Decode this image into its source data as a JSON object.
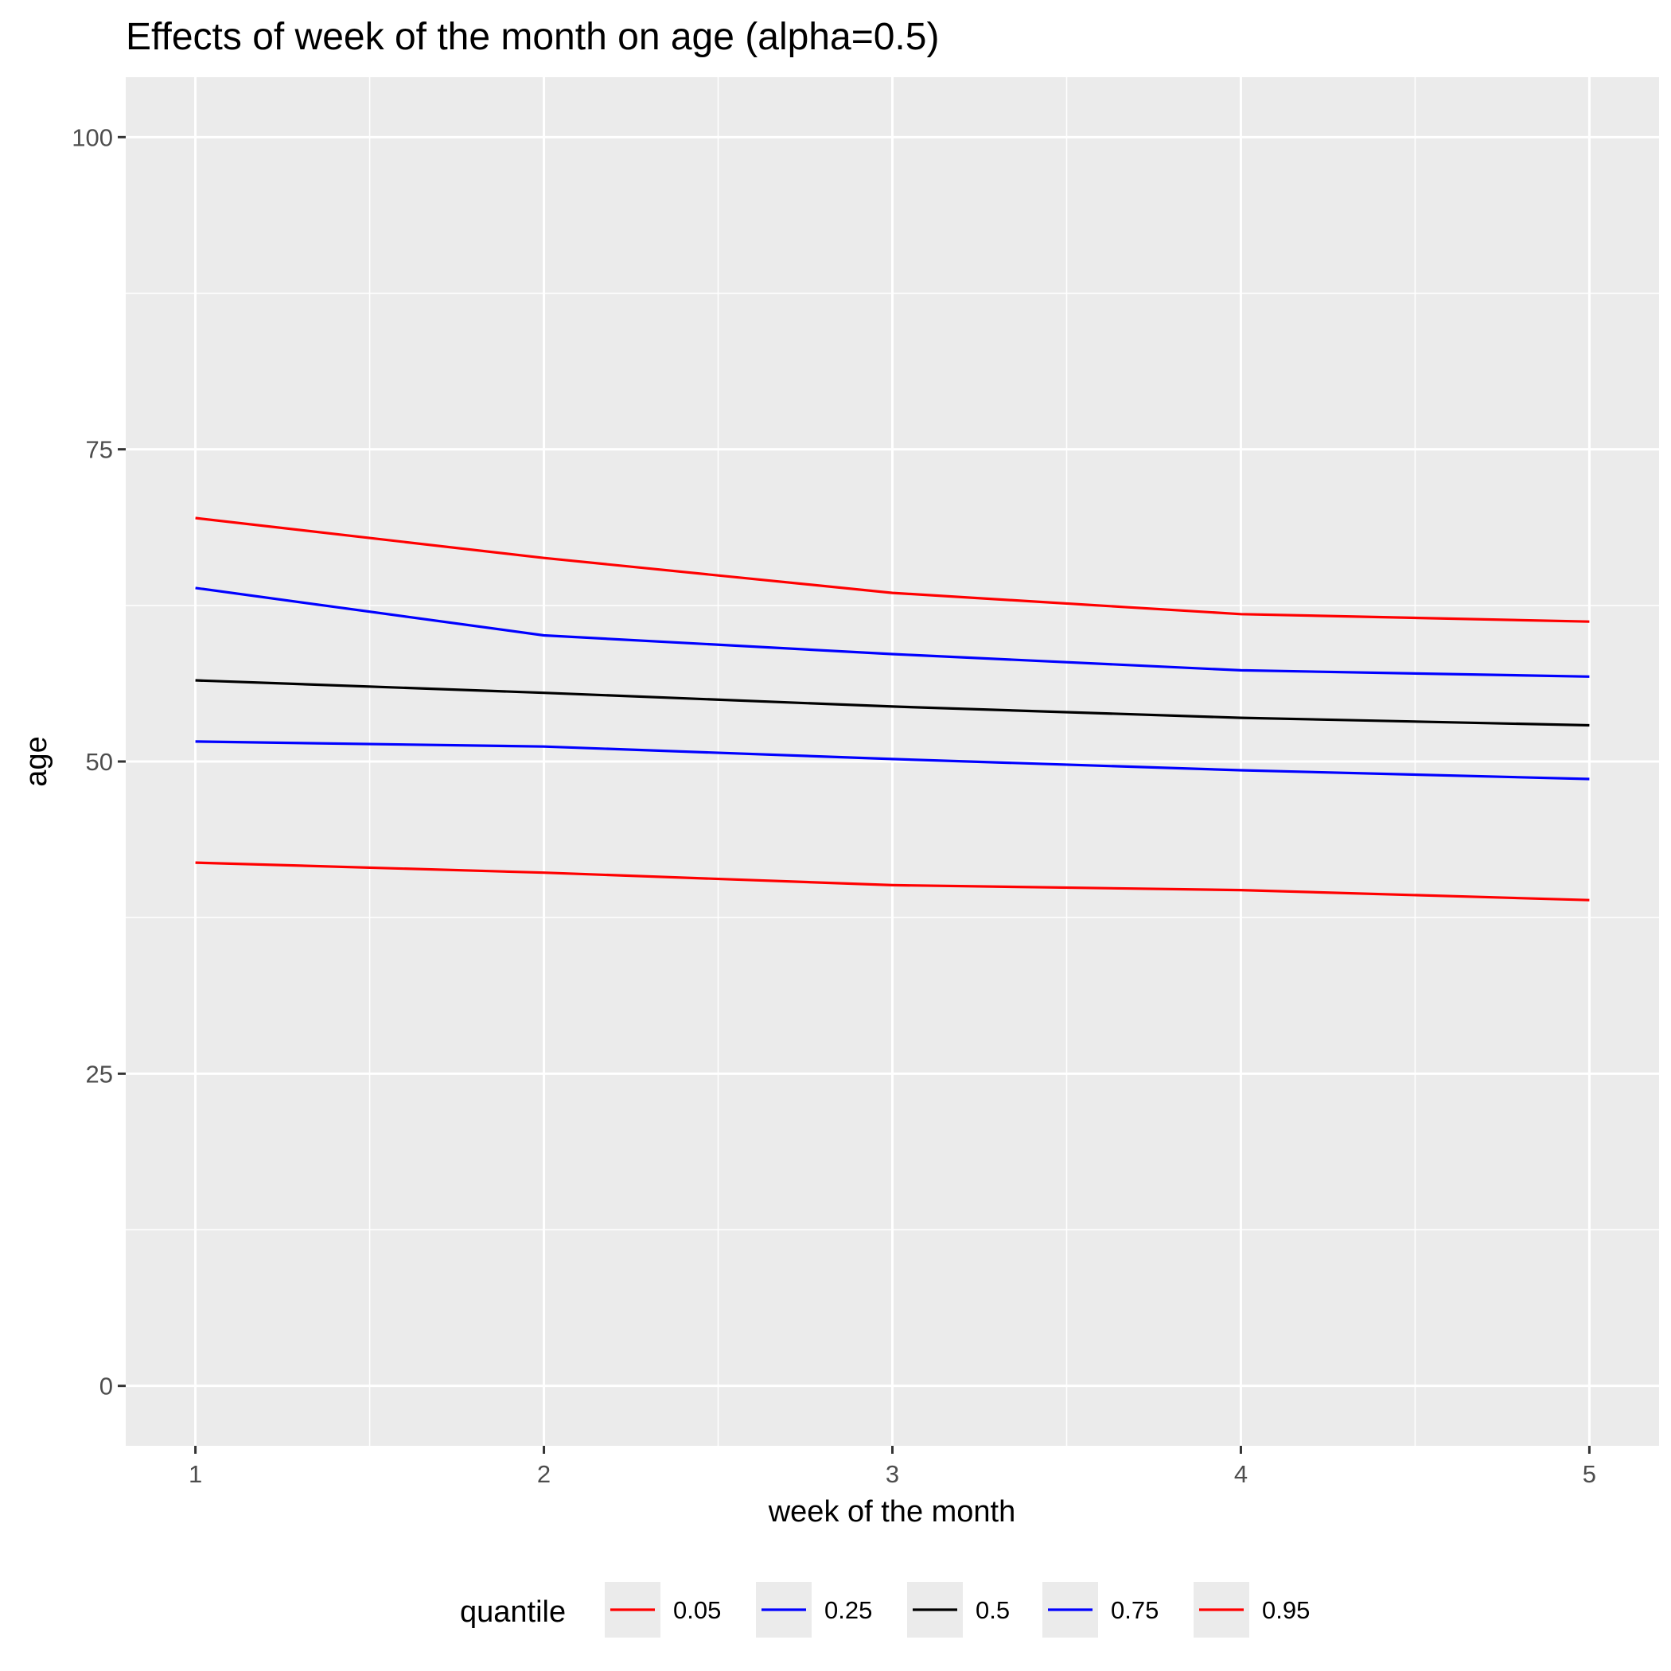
{
  "chart_data": {
    "type": "line",
    "title": "Effects of week of the month on age (alpha=0.5)",
    "xlabel": "week of the month",
    "ylabel": "age",
    "x": [
      1,
      2,
      3,
      4,
      5
    ],
    "xlim": [
      0.8,
      5.2
    ],
    "ylim": [
      -4.8,
      104.8
    ],
    "x_ticks": [
      1,
      2,
      3,
      4,
      5
    ],
    "y_ticks": [
      0,
      25,
      50,
      75,
      100
    ],
    "grid": true,
    "legend": {
      "title": "quantile",
      "position": "bottom"
    },
    "series": [
      {
        "name": "0.05",
        "color": "#ff0000",
        "values": [
          41.9,
          41.1,
          40.1,
          39.7,
          38.9
        ]
      },
      {
        "name": "0.25",
        "color": "#0000ff",
        "values": [
          51.6,
          51.2,
          50.2,
          49.3,
          48.6
        ]
      },
      {
        "name": "0.5",
        "color": "#000000",
        "values": [
          56.5,
          55.5,
          54.4,
          53.5,
          52.9
        ]
      },
      {
        "name": "0.75",
        "color": "#0000ff",
        "values": [
          63.9,
          60.1,
          58.6,
          57.3,
          56.8
        ]
      },
      {
        "name": "0.95",
        "color": "#ff0000",
        "values": [
          69.5,
          66.3,
          63.5,
          61.8,
          61.2
        ]
      }
    ]
  }
}
